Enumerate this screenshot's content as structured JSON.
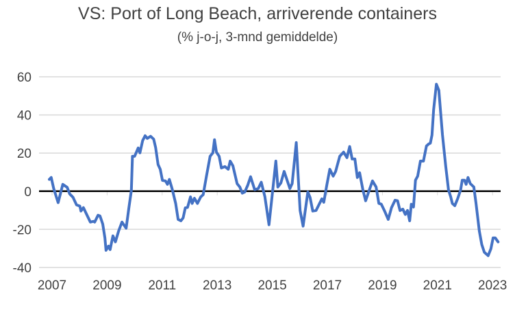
{
  "chart_data": {
    "type": "line",
    "title": "VS: Port of Long Beach, arriverende containers",
    "subtitle": "(% j-o-j, 3-mnd gemiddelde)",
    "xlabel": "",
    "ylabel": "",
    "ylim": [
      -40,
      60
    ],
    "xlim": [
      2007,
      2023.4
    ],
    "yticks": [
      -40,
      -20,
      0,
      20,
      40,
      60
    ],
    "xticks": [
      2007,
      2009,
      2011,
      2013,
      2015,
      2017,
      2019,
      2021,
      2023
    ],
    "grid": true,
    "line_color": "#4472C4",
    "series": [
      {
        "name": "Arriverende containers % j-o-j",
        "x": [
          2007.0,
          2007.07,
          2007.16,
          2007.32,
          2007.49,
          2007.65,
          2007.74,
          2007.86,
          2007.99,
          2008.11,
          2008.15,
          2008.24,
          2008.36,
          2008.49,
          2008.61,
          2008.65,
          2008.77,
          2008.84,
          2008.94,
          2009.02,
          2009.06,
          2009.15,
          2009.21,
          2009.31,
          2009.4,
          2009.52,
          2009.64,
          2009.79,
          2009.89,
          2009.98,
          2010.02,
          2010.1,
          2010.23,
          2010.29,
          2010.39,
          2010.48,
          2010.56,
          2010.68,
          2010.79,
          2010.86,
          2010.95,
          2011.03,
          2011.11,
          2011.22,
          2011.29,
          2011.36,
          2011.47,
          2011.59,
          2011.68,
          2011.78,
          2011.86,
          2011.94,
          2012.02,
          2012.13,
          2012.19,
          2012.27,
          2012.38,
          2012.5,
          2012.59,
          2012.71,
          2012.84,
          2012.94,
          2013.0,
          2013.07,
          2013.17,
          2013.25,
          2013.38,
          2013.5,
          2013.57,
          2013.67,
          2013.82,
          2013.92,
          2014.01,
          2014.1,
          2014.21,
          2014.31,
          2014.46,
          2014.59,
          2014.7,
          2014.83,
          2014.98,
          2015.23,
          2015.3,
          2015.41,
          2015.53,
          2015.74,
          2015.82,
          2015.97,
          2016.11,
          2016.22,
          2016.39,
          2016.47,
          2016.57,
          2016.69,
          2016.9,
          2016.97,
          2017.08,
          2017.19,
          2017.31,
          2017.4,
          2017.55,
          2017.69,
          2017.81,
          2017.91,
          2018.0,
          2018.1,
          2018.19,
          2018.27,
          2018.39,
          2018.49,
          2018.6,
          2018.74,
          2018.87,
          2018.97,
          2019.06,
          2019.18,
          2019.31,
          2019.43,
          2019.56,
          2019.65,
          2019.74,
          2019.84,
          2019.93,
          2020.01,
          2020.09,
          2020.15,
          2020.23,
          2020.3,
          2020.38,
          2020.48,
          2020.59,
          2020.7,
          2020.78,
          2020.84,
          2020.9,
          2020.96,
          2021.06,
          2021.15,
          2021.28,
          2021.4,
          2021.5,
          2021.58,
          2021.64,
          2021.73,
          2021.83,
          2021.94,
          2022.0,
          2022.08,
          2022.14,
          2022.21,
          2022.29,
          2022.42,
          2022.5,
          2022.62,
          2022.71,
          2022.8,
          2022.94,
          2023.04,
          2023.12,
          2023.2,
          2023.3
        ],
        "y": [
          6.2,
          7.2,
          1.4,
          -6,
          3.6,
          2,
          -1.4,
          -3.2,
          -7.2,
          -7.8,
          -10.4,
          -8.6,
          -12.3,
          -16.2,
          -15.8,
          -16.2,
          -12.6,
          -13,
          -17.2,
          -24.5,
          -31,
          -28.8,
          -30.6,
          -23.4,
          -26.6,
          -20.8,
          -16.2,
          -19.4,
          -8.7,
          0.4,
          18.3,
          18.3,
          22.7,
          20.1,
          26.6,
          29.1,
          27.7,
          28.8,
          27.3,
          23,
          14,
          11.5,
          5.7,
          5.4,
          3.6,
          6.2,
          0.8,
          -6.4,
          -14.8,
          -15.5,
          -14,
          -8.7,
          -8.5,
          -3,
          -6.4,
          -3.7,
          -6.4,
          -3,
          -1.8,
          8,
          18.3,
          20.1,
          27,
          20.5,
          18.3,
          12.2,
          12.9,
          11.5,
          15.8,
          13.3,
          4,
          2.2,
          -1,
          -0.4,
          3.2,
          7.6,
          0.8,
          1.4,
          4.7,
          -2.9,
          -17.6,
          15.8,
          2.2,
          4.3,
          10.4,
          1.4,
          4,
          25.5,
          -10.1,
          -18.3,
          -0.4,
          -3.2,
          -10.4,
          -10.1,
          -4,
          -5.8,
          3.2,
          11.5,
          7.9,
          10.4,
          18.3,
          20.5,
          17.6,
          23.4,
          16.9,
          16.9,
          7.2,
          9.7,
          0.7,
          -5,
          -0.4,
          5.4,
          2.2,
          -6.4,
          -6.8,
          -10.4,
          -14.8,
          -8.6,
          -4.7,
          -5,
          -10.1,
          -9.4,
          -12.2,
          -10.1,
          -15.5,
          -6.8,
          -8.3,
          5.8,
          7.9,
          15.8,
          15.8,
          23.7,
          24.8,
          25.2,
          29.5,
          42.8,
          56.1,
          52.9,
          29.5,
          12.9,
          0.7,
          -2.9,
          -6.4,
          -7.6,
          -4,
          0.7,
          5.8,
          5.8,
          3.6,
          7.2,
          4,
          2.2,
          -6.4,
          -20.9,
          -28,
          -32,
          -33.8,
          -30.2,
          -24.5,
          -24.5,
          -26.6
        ]
      }
    ]
  }
}
